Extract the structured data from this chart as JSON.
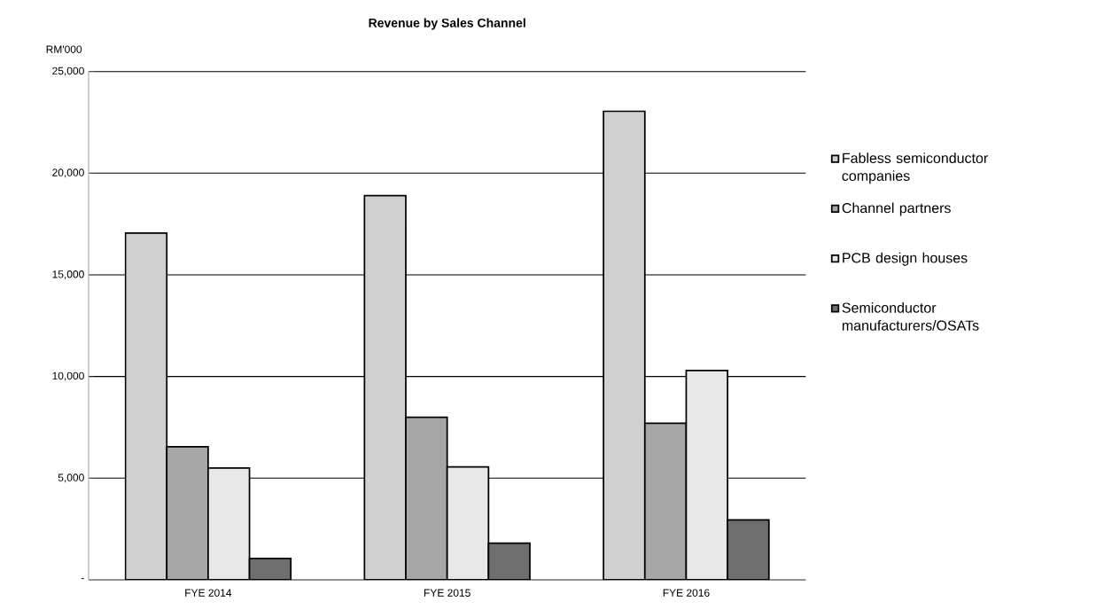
{
  "chart_data": {
    "type": "bar",
    "title": "Revenue by Sales Channel",
    "ylabel": "RM'000",
    "categories": [
      "FYE 2014",
      "FYE 2015",
      "FYE 2016"
    ],
    "series": [
      {
        "name": "Fabless semiconductor companies",
        "color": "#d0d0d0",
        "values": [
          17050,
          18900,
          23050
        ]
      },
      {
        "name": "Channel partners",
        "color": "#a6a6a6",
        "values": [
          6550,
          8000,
          7700
        ]
      },
      {
        "name": "PCB design houses",
        "color": "#e8e8e8",
        "values": [
          5500,
          5550,
          10300
        ]
      },
      {
        "name": "Semiconductor manufacturers/OSATs",
        "color": "#6e6e6e",
        "values": [
          1050,
          1800,
          2950
        ]
      }
    ],
    "ylim": [
      0,
      25000
    ],
    "yticks": [
      {
        "value": 0,
        "label": "-"
      },
      {
        "value": 5000,
        "label": "5,000"
      },
      {
        "value": 10000,
        "label": "10,000"
      },
      {
        "value": 15000,
        "label": "15,000"
      },
      {
        "value": 20000,
        "label": "20,000"
      },
      {
        "value": 25000,
        "label": "25,000"
      }
    ],
    "grid": "y",
    "legend": "right"
  }
}
